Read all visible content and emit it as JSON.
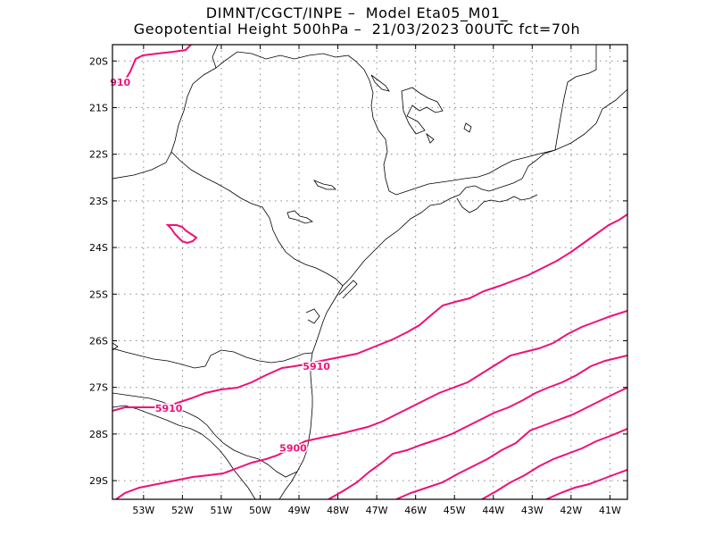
{
  "header": {
    "line1": "DIMNT/CGCT/INPE –  Model Eta05_M01_",
    "line2": "Geopotential Height 500hPa –  21/03/2023 00UTC fct=70h"
  },
  "map": {
    "lon_range": [
      -53.8,
      -40.55
    ],
    "lat_range": [
      -29.4,
      -19.65
    ],
    "lon_ticks": [
      {
        "value": -53,
        "label": "53W"
      },
      {
        "value": -52,
        "label": "52W"
      },
      {
        "value": -51,
        "label": "51W"
      },
      {
        "value": -50,
        "label": "50W"
      },
      {
        "value": -49,
        "label": "49W"
      },
      {
        "value": -48,
        "label": "48W"
      },
      {
        "value": -47,
        "label": "47W"
      },
      {
        "value": -46,
        "label": "46W"
      },
      {
        "value": -45,
        "label": "45W"
      },
      {
        "value": -44,
        "label": "44W"
      },
      {
        "value": -43,
        "label": "43W"
      },
      {
        "value": -42,
        "label": "42W"
      },
      {
        "value": -41,
        "label": "41W"
      }
    ],
    "lat_ticks": [
      {
        "value": -20,
        "label": "20S"
      },
      {
        "value": -21,
        "label": "21S"
      },
      {
        "value": -22,
        "label": "22S"
      },
      {
        "value": -23,
        "label": "23S"
      },
      {
        "value": -24,
        "label": "24S"
      },
      {
        "value": -25,
        "label": "25S"
      },
      {
        "value": -26,
        "label": "26S"
      },
      {
        "value": -27,
        "label": "27S"
      },
      {
        "value": -28,
        "label": "28S"
      },
      {
        "value": -29,
        "label": "29S"
      }
    ],
    "grid": true,
    "contour_color": "#ee1177",
    "border_color": "#000000",
    "contour_labels": [
      {
        "text": "910",
        "lon": -53.6,
        "lat": -20.45
      },
      {
        "text": "5910",
        "lon": -48.55,
        "lat": -26.55
      },
      {
        "text": "5910",
        "lon": -52.35,
        "lat": -27.45
      },
      {
        "text": "5900",
        "lon": -49.15,
        "lat": -28.3
      }
    ]
  }
}
